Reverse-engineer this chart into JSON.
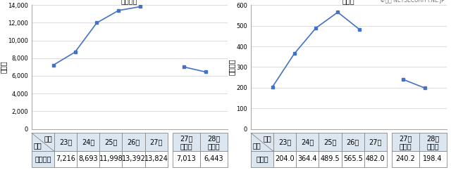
{
  "chart1": {
    "title": "認知件数",
    "ylabel": "（件）",
    "values_main": [
      7216,
      8693,
      11998,
      13392,
      13824
    ],
    "values_half": [
      7013,
      6443
    ],
    "ylim": [
      0,
      14000
    ],
    "yticks": [
      0,
      2000,
      4000,
      6000,
      8000,
      10000,
      12000,
      14000
    ],
    "line_color": "#4472C4",
    "table_rows": [
      "認知件数"
    ],
    "table_cols_main": [
      "23年",
      "24年",
      "25年",
      "26年",
      "27年"
    ],
    "table_cols_half": [
      "27年\n上半期",
      "28年\n上半期"
    ],
    "table_vals_main": [
      "7,216",
      "8,693",
      "11,998",
      "13,392",
      "13,824"
    ],
    "table_vals_half": [
      "7,013",
      "6,443"
    ]
  },
  "chart2": {
    "title": "被害額",
    "ylabel": "（億円）",
    "values_main": [
      204.0,
      364.4,
      489.5,
      565.5,
      482.0
    ],
    "values_half": [
      240.2,
      198.4
    ],
    "ylim": [
      0,
      600
    ],
    "yticks": [
      0,
      100,
      200,
      300,
      400,
      500,
      600
    ],
    "line_color": "#4472C4",
    "watermark": "©警察 NETSECURITY.NE.JP",
    "table_rows": [
      "被害額"
    ],
    "table_cols_main": [
      "23年",
      "24年",
      "25年",
      "26年",
      "27年"
    ],
    "table_cols_half": [
      "27年\n上半期",
      "28年\n上半期"
    ],
    "table_vals_main": [
      "204.0",
      "364.4",
      "489.5",
      "565.5",
      "482.0"
    ],
    "table_vals_half": [
      "240.2",
      "198.4"
    ]
  },
  "bg_color": "#ffffff",
  "grid_color": "#cccccc",
  "table_header_bg": "#dce6f1",
  "row_label_bg": "#dce6f1",
  "font_size_small": 6.0,
  "font_size_title": 9,
  "font_size_ylabel": 6,
  "header_diag_label1": "年次",
  "header_diag_label2": "区分"
}
